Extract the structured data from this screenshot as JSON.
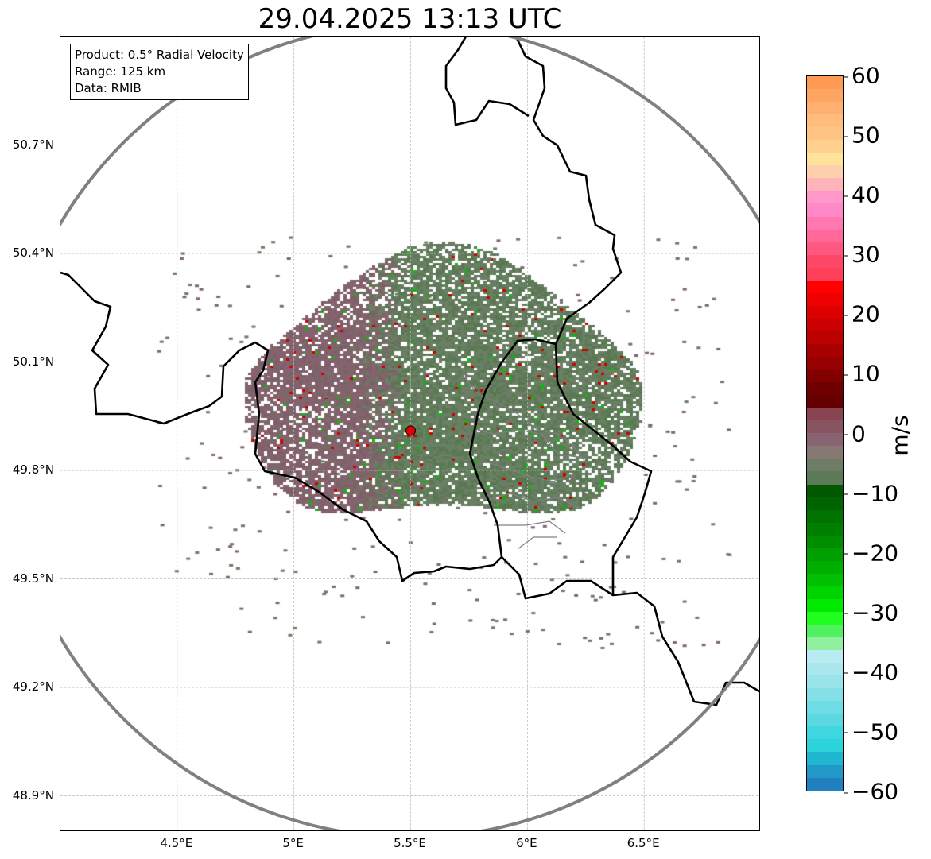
{
  "title": "29.04.2025 13:13 UTC",
  "info": {
    "product": "Product: 0.5° Radial Velocity",
    "range": "Range: 125 km",
    "data": "Data: RMIB"
  },
  "map": {
    "lon_range": [
      4.0,
      7.0
    ],
    "lat_range": [
      48.8,
      51.0
    ],
    "radar_site": {
      "lon": 5.5,
      "lat": 49.91
    },
    "range_km": 125,
    "lat_ticks": [
      "50.7°N",
      "50.4°N",
      "50.1°N",
      "49.8°N",
      "49.5°N",
      "49.2°N",
      "48.9°N"
    ],
    "lat_values": [
      50.7,
      50.4,
      50.1,
      49.8,
      49.5,
      49.2,
      48.9
    ],
    "lon_ticks": [
      "4.5°E",
      "5°E",
      "5.5°E",
      "6°E",
      "6.5°E"
    ],
    "lon_values": [
      4.5,
      5.0,
      5.5,
      6.0,
      6.5
    ],
    "colors": {
      "range_ring": "#808080",
      "site": "#e00000",
      "border": "#000000",
      "admin": "#808080",
      "grid": "#b0b0b0"
    }
  },
  "colorbar": {
    "label": "m/s",
    "min": -60,
    "max": 60,
    "ticks": [
      "60",
      "50",
      "40",
      "30",
      "20",
      "10",
      "0",
      "−10",
      "−20",
      "−30",
      "−40",
      "−50",
      "−60"
    ],
    "tick_values": [
      60,
      50,
      40,
      30,
      20,
      10,
      0,
      -10,
      -20,
      -30,
      -40,
      -50,
      -60
    ],
    "colors_top_to_bottom": [
      "#ff9a55",
      "#ffa562",
      "#ffb070",
      "#ffbc7c",
      "#ffc484",
      "#ffd090",
      "#ffe39a",
      "#ffd0ae",
      "#ffb4bc",
      "#ff98c8",
      "#ff88c8",
      "#ff78b0",
      "#ff6898",
      "#ff5880",
      "#ff4868",
      "#ff4058",
      "#ff0000",
      "#ee0000",
      "#dd0000",
      "#cc0000",
      "#bb0000",
      "#a80000",
      "#960000",
      "#820000",
      "#700000",
      "#640000",
      "#884450",
      "#885462",
      "#886472",
      "#887874",
      "#6e7e66",
      "#5c7a58",
      "#005800",
      "#006400",
      "#007200",
      "#008000",
      "#008e00",
      "#009e00",
      "#00ae00",
      "#00c000",
      "#00d400",
      "#00ea00",
      "#20ff20",
      "#50f060",
      "#90f0a0",
      "#b8ecf0",
      "#aae8ee",
      "#98e4ea",
      "#84e0e6",
      "#6edce4",
      "#5cd8e0",
      "#40d6e0",
      "#2cd4dc",
      "#20b8d0",
      "#2298c8",
      "#2080c0"
    ]
  }
}
